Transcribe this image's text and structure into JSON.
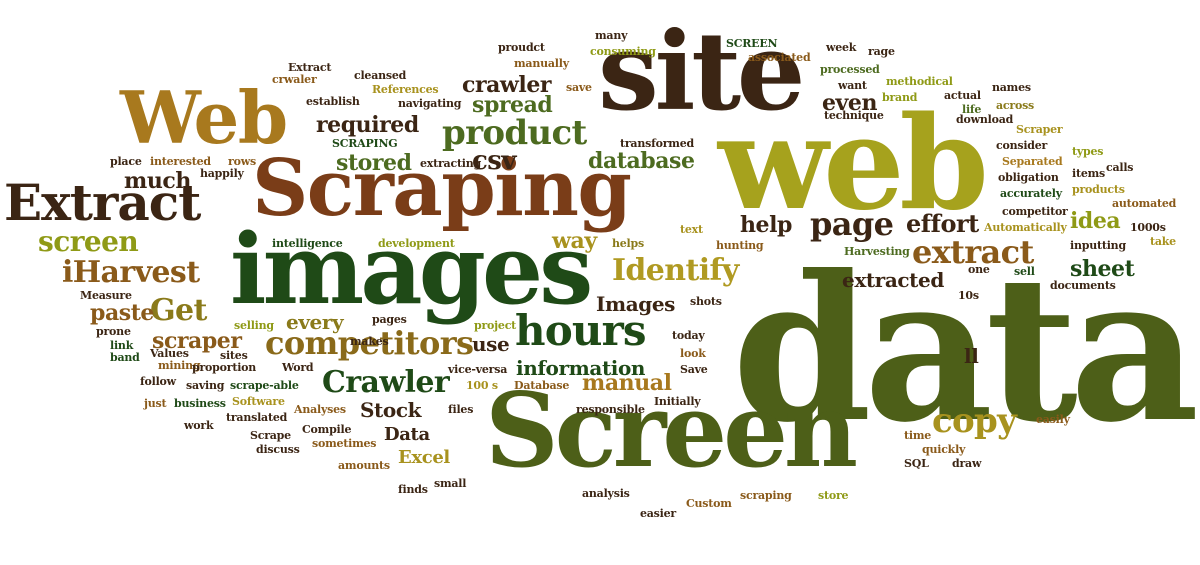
{
  "palette": {
    "dark_green": "#1f4a17",
    "olive": "#4d5f18",
    "yellow_green": "#8f9a16",
    "gold": "#a8921e",
    "brown": "#8a5a1a",
    "rust": "#7a3d18",
    "dark_brown": "#3b2514",
    "white": "#ffffff"
  },
  "words": [
    {
      "text": "data",
      "color": "#4d5f18"
    },
    {
      "text": "Screen",
      "color": "#4d5f18"
    },
    {
      "text": "web",
      "color": "#a6a21d"
    },
    {
      "text": "site",
      "color": "#3b2514"
    },
    {
      "text": "Scraping",
      "color": "#7a3d18"
    },
    {
      "text": "images",
      "color": "#1f4a17"
    },
    {
      "text": "Web",
      "color": "#a8791e"
    },
    {
      "text": "Extract",
      "color": "#3b2514"
    },
    {
      "text": "hours",
      "color": "#1f4a17"
    },
    {
      "text": "product",
      "color": "#4d6b20"
    },
    {
      "text": "competitors",
      "color": "#8a6a1a"
    },
    {
      "text": "iHarvest",
      "color": "#8a5a1a"
    },
    {
      "text": "Crawler",
      "color": "#1f4a17"
    },
    {
      "text": "Identify",
      "color": "#b09a22"
    },
    {
      "text": "Get",
      "color": "#8a7a1a"
    },
    {
      "text": "screen",
      "color": "#8f9a16"
    },
    {
      "text": "page",
      "color": "#3b2514"
    },
    {
      "text": "extract",
      "color": "#8a5a1a"
    },
    {
      "text": "copy",
      "color": "#a8921e"
    },
    {
      "text": "crawler",
      "color": "#3b2514"
    },
    {
      "text": "spread",
      "color": "#4d6b20"
    },
    {
      "text": "required",
      "color": "#3b2514"
    },
    {
      "text": "stored",
      "color": "#4d6b20"
    },
    {
      "text": "csv",
      "color": "#3b2514"
    },
    {
      "text": "database",
      "color": "#4d6b20"
    },
    {
      "text": "much",
      "color": "#3b2514"
    },
    {
      "text": "even",
      "color": "#3b2514"
    },
    {
      "text": "effort",
      "color": "#3b2514"
    },
    {
      "text": "help",
      "color": "#3b2514"
    },
    {
      "text": "idea",
      "color": "#8f9a16"
    },
    {
      "text": "sheet",
      "color": "#1f4a17"
    },
    {
      "text": "way",
      "color": "#a8921e"
    },
    {
      "text": "extracted",
      "color": "#3b2514"
    },
    {
      "text": "Images",
      "color": "#3b2514"
    },
    {
      "text": "scraper",
      "color": "#8a5a1a"
    },
    {
      "text": "paste",
      "color": "#8a5a1a"
    },
    {
      "text": "every",
      "color": "#8a7a1a"
    },
    {
      "text": "use",
      "color": "#3b2514"
    },
    {
      "text": "information",
      "color": "#1f4a17"
    },
    {
      "text": "manual",
      "color": "#a8791e"
    },
    {
      "text": "Stock",
      "color": "#3b2514"
    },
    {
      "text": "Data",
      "color": "#3b2514"
    },
    {
      "text": "Excel",
      "color": "#a8921e"
    },
    {
      "text": "SCREEN",
      "color": "#1f4a17"
    },
    {
      "text": "week",
      "color": "#3b2514"
    },
    {
      "text": "rage",
      "color": "#3b2514"
    },
    {
      "text": "many",
      "color": "#3b2514"
    },
    {
      "text": "consuming",
      "color": "#8f9a16"
    },
    {
      "text": "associated",
      "color": "#8a5a1a"
    },
    {
      "text": "processed",
      "color": "#4d6b20"
    },
    {
      "text": "want",
      "color": "#3b2514"
    },
    {
      "text": "methodical",
      "color": "#8f9a16"
    },
    {
      "text": "brand",
      "color": "#8f9a16"
    },
    {
      "text": "actual",
      "color": "#3b2514"
    },
    {
      "text": "life",
      "color": "#4d6b20"
    },
    {
      "text": "names",
      "color": "#3b2514"
    },
    {
      "text": "across",
      "color": "#8a7a1a"
    },
    {
      "text": "technique",
      "color": "#3b2514"
    },
    {
      "text": "download",
      "color": "#3b2514"
    },
    {
      "text": "Scraper",
      "color": "#a8921e"
    },
    {
      "text": "consider",
      "color": "#3b2514"
    },
    {
      "text": "types",
      "color": "#8f9a16"
    },
    {
      "text": "Separated",
      "color": "#a8791e"
    },
    {
      "text": "obligation",
      "color": "#3b2514"
    },
    {
      "text": "calls",
      "color": "#3b2514"
    },
    {
      "text": "items",
      "color": "#3b2514"
    },
    {
      "text": "accurately",
      "color": "#1f4a17"
    },
    {
      "text": "products",
      "color": "#a8921e"
    },
    {
      "text": "automated",
      "color": "#8a5a1a"
    },
    {
      "text": "competitor",
      "color": "#3b2514"
    },
    {
      "text": "1000s",
      "color": "#3b2514"
    },
    {
      "text": "Automatically",
      "color": "#a8921e"
    },
    {
      "text": "take",
      "color": "#a8921e"
    },
    {
      "text": "inputting",
      "color": "#3b2514"
    },
    {
      "text": "Harvesting",
      "color": "#4d6b20"
    },
    {
      "text": "hunting",
      "color": "#8a5a1a"
    },
    {
      "text": "one",
      "color": "#3b2514"
    },
    {
      "text": "sell",
      "color": "#1f4a17"
    },
    {
      "text": "10s",
      "color": "#3b2514"
    },
    {
      "text": "documents",
      "color": "#3b2514"
    },
    {
      "text": "shots",
      "color": "#3b2514"
    },
    {
      "text": "text",
      "color": "#a8921e"
    },
    {
      "text": "helps",
      "color": "#8a7a1a"
    },
    {
      "text": "transformed",
      "color": "#3b2514"
    },
    {
      "text": "proudct",
      "color": "#3b2514"
    },
    {
      "text": "manually",
      "color": "#8a5a1a"
    },
    {
      "text": "Extract",
      "color": "#3b2514"
    },
    {
      "text": "crwaler",
      "color": "#8a5a1a"
    },
    {
      "text": "cleansed",
      "color": "#3b2514"
    },
    {
      "text": "References",
      "color": "#a8921e"
    },
    {
      "text": "save",
      "color": "#8a5a1a"
    },
    {
      "text": "establish",
      "color": "#3b2514"
    },
    {
      "text": "navigating",
      "color": "#3b2514"
    },
    {
      "text": "SCRAPING",
      "color": "#1f4a17"
    },
    {
      "text": "place",
      "color": "#3b2514"
    },
    {
      "text": "interested",
      "color": "#8a5a1a"
    },
    {
      "text": "rows",
      "color": "#8a5a1a"
    },
    {
      "text": "extracting",
      "color": "#3b2514"
    },
    {
      "text": "happily",
      "color": "#3b2514"
    },
    {
      "text": "intelligence",
      "color": "#1f4a17"
    },
    {
      "text": "development",
      "color": "#8f9a16"
    },
    {
      "text": "Measure",
      "color": "#3b2514"
    },
    {
      "text": "prone",
      "color": "#3b2514"
    },
    {
      "text": "link",
      "color": "#1f4a17"
    },
    {
      "text": "band",
      "color": "#1f4a17"
    },
    {
      "text": "selling",
      "color": "#8f9a16"
    },
    {
      "text": "pages",
      "color": "#3b2514"
    },
    {
      "text": "project",
      "color": "#8f9a16"
    },
    {
      "text": "today",
      "color": "#3b2514"
    },
    {
      "text": "look",
      "color": "#8a5a1a"
    },
    {
      "text": "Values",
      "color": "#3b2514"
    },
    {
      "text": "sites",
      "color": "#3b2514"
    },
    {
      "text": "makes",
      "color": "#3b2514"
    },
    {
      "text": "mining",
      "color": "#8a5a1a"
    },
    {
      "text": "proportion",
      "color": "#3b2514"
    },
    {
      "text": "Word",
      "color": "#3b2514"
    },
    {
      "text": "vice-versa",
      "color": "#3b2514"
    },
    {
      "text": "Save",
      "color": "#3b2514"
    },
    {
      "text": "follow",
      "color": "#3b2514"
    },
    {
      "text": "saving",
      "color": "#3b2514"
    },
    {
      "text": "scrape-able",
      "color": "#1f4a17"
    },
    {
      "text": "100 s",
      "color": "#a8921e"
    },
    {
      "text": "Database",
      "color": "#8a5a1a"
    },
    {
      "text": "just",
      "color": "#8a5a1a"
    },
    {
      "text": "business",
      "color": "#1f4a17"
    },
    {
      "text": "Software",
      "color": "#a8921e"
    },
    {
      "text": "Analyses",
      "color": "#8a5a1a"
    },
    {
      "text": "files",
      "color": "#3b2514"
    },
    {
      "text": "responsible",
      "color": "#3b2514"
    },
    {
      "text": "Initially",
      "color": "#3b2514"
    },
    {
      "text": "translated",
      "color": "#3b2514"
    },
    {
      "text": "work",
      "color": "#3b2514"
    },
    {
      "text": "Scrape",
      "color": "#3b2514"
    },
    {
      "text": "Compile",
      "color": "#3b2514"
    },
    {
      "text": "discuss",
      "color": "#3b2514"
    },
    {
      "text": "sometimes",
      "color": "#8a5a1a"
    },
    {
      "text": "amounts",
      "color": "#8a5a1a"
    },
    {
      "text": "finds",
      "color": "#3b2514"
    },
    {
      "text": "small",
      "color": "#3b2514"
    },
    {
      "text": "analysis",
      "color": "#3b2514"
    },
    {
      "text": "easier",
      "color": "#3b2514"
    },
    {
      "text": "Custom",
      "color": "#8a5a1a"
    },
    {
      "text": "scraping",
      "color": "#8a5a1a"
    },
    {
      "text": "store",
      "color": "#8f9a16"
    },
    {
      "text": "time",
      "color": "#8a5a1a"
    },
    {
      "text": "quickly",
      "color": "#8a5a1a"
    },
    {
      "text": "SQL",
      "color": "#3b2514"
    },
    {
      "text": "draw",
      "color": "#3b2514"
    },
    {
      "text": "easily",
      "color": "#8a5a1a"
    },
    {
      "text": "ll",
      "color": "#3b2514"
    }
  ]
}
